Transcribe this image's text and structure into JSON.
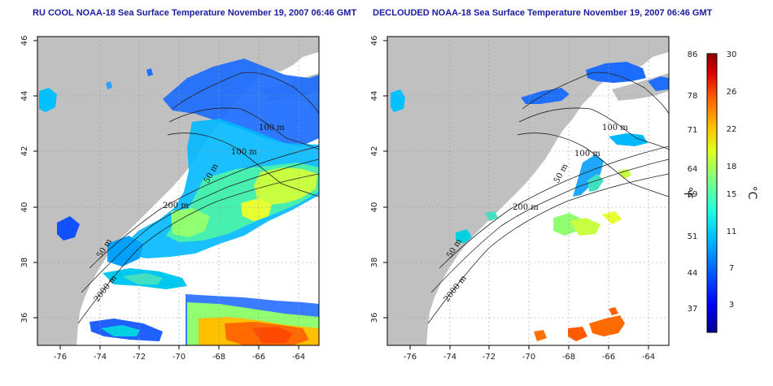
{
  "titles": {
    "left": "RU COOL NOAA-18 Sea Surface Temperature November 19, 2007 06:46 GMT",
    "right": "DECLOUDED NOAA-18 Sea Surface Temperature November 19, 2007 06:46 GMT"
  },
  "axes": {
    "lon_ticks": [
      "-76",
      "-74",
      "-72",
      "-70",
      "-68",
      "-66",
      "-64"
    ],
    "lat_ticks": [
      "46",
      "44",
      "42",
      "40",
      "38",
      "36"
    ]
  },
  "isobaths": {
    "m100": "100 m",
    "m50": "50 m",
    "m200": "200 m",
    "m2000": "2000 m"
  },
  "colorbar": {
    "fahrenheit_label": "°F",
    "celsius_label": "°C",
    "fahrenheit_ticks": [
      "86",
      "78",
      "71",
      "64",
      "59",
      "51",
      "44",
      "37"
    ],
    "celsius_ticks": [
      "30",
      "26",
      "22",
      "18",
      "15",
      "11",
      "7",
      "3"
    ]
  },
  "colors": {
    "land": "#c0c0c0",
    "ocean": "#ffffff",
    "title": "#1a1aa0",
    "sst_scale": [
      "#00008f",
      "#0000ff",
      "#0060ff",
      "#00bfff",
      "#20ffdf",
      "#80ff80",
      "#dfff20",
      "#ffbf00",
      "#ff6000",
      "#df0000",
      "#8f0000"
    ]
  }
}
